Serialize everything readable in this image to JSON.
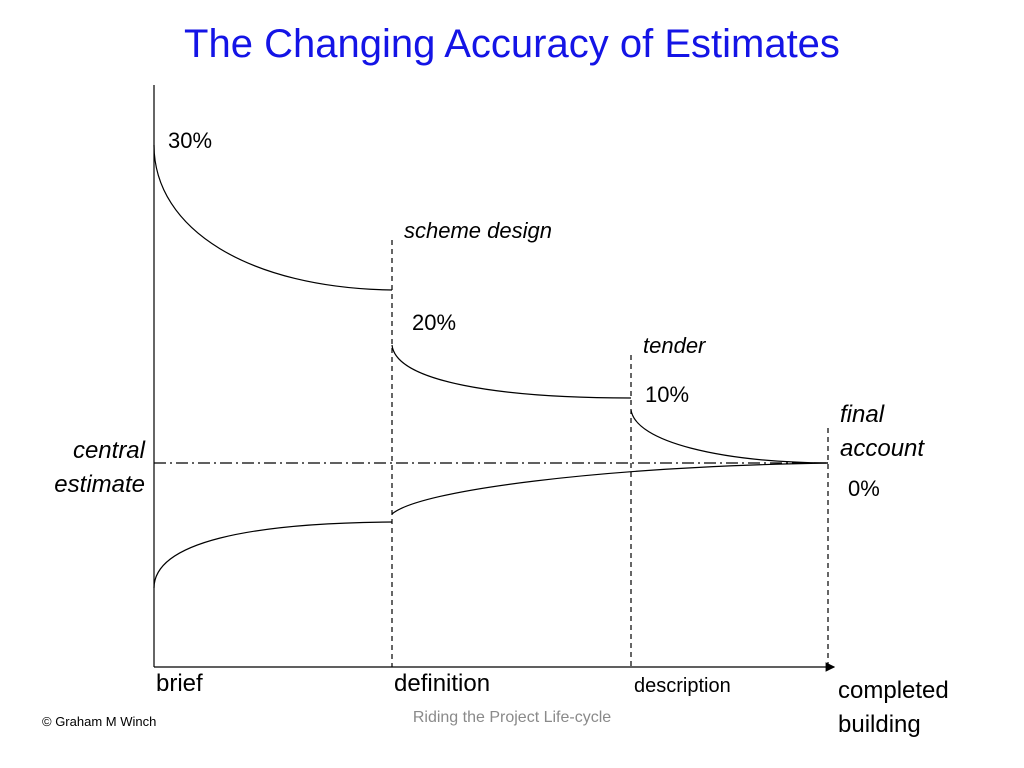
{
  "title": "The Changing Accuracy of Estimates",
  "accuracy_labels": [
    "30%",
    "20%",
    "10%",
    "0%"
  ],
  "milestones": [
    "scheme design",
    "tender",
    "final account"
  ],
  "reference_label": "central estimate",
  "stages": [
    "brief",
    "definition",
    "description",
    "completed building"
  ],
  "footer": {
    "copyright": "© Graham M Winch",
    "subtitle": "Riding the Project Life-cycle"
  }
}
